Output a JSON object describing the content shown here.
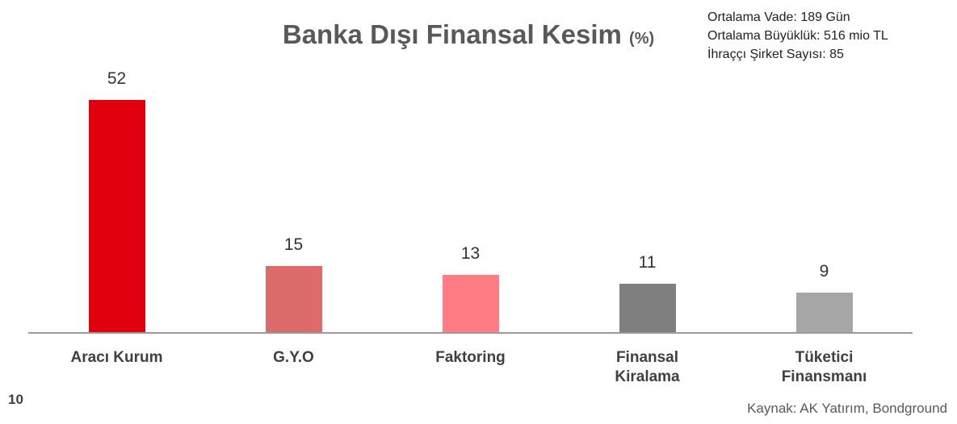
{
  "chart_data": {
    "type": "bar",
    "title": "Banka Dışı Finansal Kesim",
    "title_unit": "(%)",
    "categories": [
      "Aracı Kurum",
      "G.Y.O",
      "Faktoring",
      "Finansal Kiralama",
      "Tüketici Finansmanı"
    ],
    "values": [
      52,
      15,
      13,
      11,
      9
    ],
    "colors": [
      "#e0000e",
      "#de6b6b",
      "#ff7c84",
      "#7f7f7f",
      "#a6a6a6"
    ]
  },
  "notes": [
    "Ortalama Vade:  189 Gün",
    "Ortalama Büyüklük: 516 mio TL",
    "İhraççı Şirket Sayısı: 85"
  ],
  "page_number": 10,
  "source": "Kaynak: AK Yatırım, Bondground"
}
